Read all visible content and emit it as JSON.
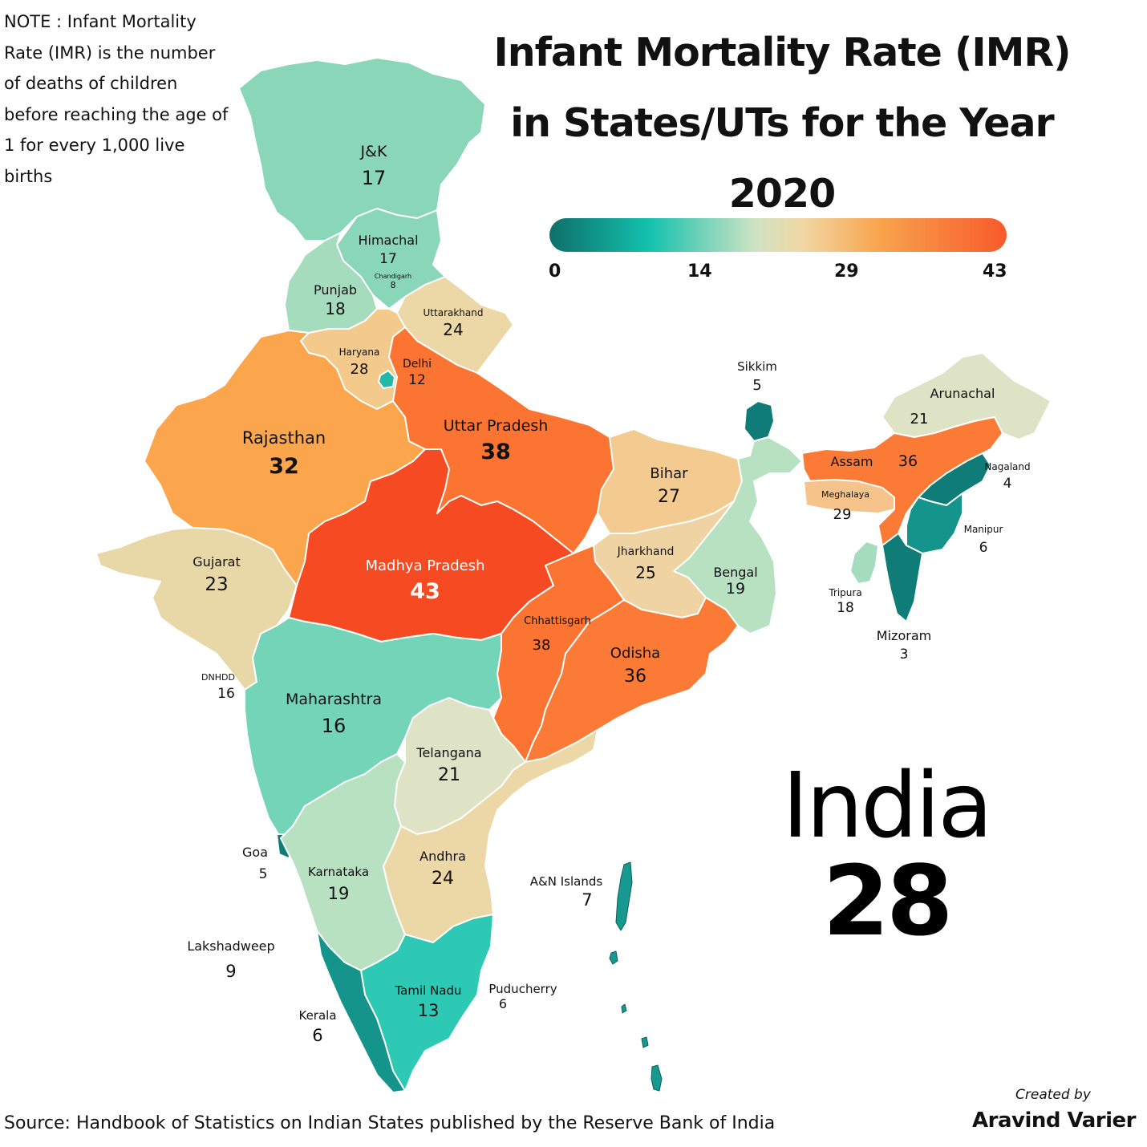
{
  "note": "NOTE : Infant Mortality Rate (IMR) is the number of deaths of children before reaching the age of 1 for every 1,000 live births",
  "title": {
    "line1": "Infant Mortality Rate (IMR)",
    "line2": "in States/UTs for the Year",
    "line3": "2020"
  },
  "legend": {
    "ticks": [
      "0",
      "14",
      "29",
      "43"
    ],
    "colors": [
      "#0e6f6a",
      "#14c2ae",
      "#cfe3c4",
      "#f0d8a6",
      "#f9a44e",
      "#f75a2a"
    ]
  },
  "national": {
    "name": "India",
    "value": "28"
  },
  "source": "Source: Handbook of Statistics on Indian States published by the Reserve Bank of India",
  "credit": {
    "by": "Created by",
    "name": "Aravind Varier"
  },
  "regions": {
    "jk": {
      "name": "J&K",
      "value": "17",
      "color": "#8ad6b8"
    },
    "himachal": {
      "name": "Himachal",
      "value": "17",
      "color": "#8ad6b8"
    },
    "chandigarh": {
      "name": "Chandigarh",
      "value": "8"
    },
    "punjab": {
      "name": "Punjab",
      "value": "18",
      "color": "#a6dcbe"
    },
    "uttarakhand": {
      "name": "Uttarakhand",
      "value": "24",
      "color": "#ecd7a6"
    },
    "haryana": {
      "name": "Haryana",
      "value": "28",
      "color": "#f3c98c"
    },
    "delhi": {
      "name": "Delhi",
      "value": "12",
      "color": "#23b8a8"
    },
    "rajasthan": {
      "name": "Rajasthan",
      "value": "32",
      "color": "#fba64d"
    },
    "up": {
      "name": "Uttar Pradesh",
      "value": "38",
      "color": "#fb7432"
    },
    "sikkim": {
      "name": "Sikkim",
      "value": "5",
      "color": "#0f7c77"
    },
    "arunachal": {
      "name": "Arunachal",
      "value": "21",
      "color": "#dde3c4"
    },
    "assam": {
      "name": "Assam",
      "value": "36",
      "color": "#fb7a36"
    },
    "nagaland": {
      "name": "Nagaland",
      "value": "4",
      "color": "#0f7c77"
    },
    "meghalaya": {
      "name": "Meghalaya",
      "value": "29",
      "color": "#f6c48a"
    },
    "manipur": {
      "name": "Manipur",
      "value": "6",
      "color": "#14948a"
    },
    "tripura": {
      "name": "Tripura",
      "value": "18",
      "color": "#a6dcbe"
    },
    "mizoram": {
      "name": "Mizoram",
      "value": "3",
      "color": "#0f7c77"
    },
    "bihar": {
      "name": "Bihar",
      "value": "27",
      "color": "#f3cb90"
    },
    "gujarat": {
      "name": "Gujarat",
      "value": "23",
      "color": "#e8d8a8"
    },
    "mp": {
      "name": "Madhya Pradesh",
      "value": "43",
      "color": "#f54a22"
    },
    "jharkhand": {
      "name": "Jharkhand",
      "value": "25",
      "color": "#efd3a2"
    },
    "bengal": {
      "name": "Bengal",
      "value": "19",
      "color": "#b8e1c2"
    },
    "chhattisgarh": {
      "name": "Chhattisgarh",
      "value": "38",
      "color": "#fb7432"
    },
    "odisha": {
      "name": "Odisha",
      "value": "36",
      "color": "#fb7a36"
    },
    "dnhdd": {
      "name": "DNHDD",
      "value": "16"
    },
    "maharashtra": {
      "name": "Maharashtra",
      "value": "16",
      "color": "#74d4b8"
    },
    "telangana": {
      "name": "Telangana",
      "value": "21",
      "color": "#dde3c4"
    },
    "goa": {
      "name": "Goa",
      "value": "5",
      "color": "#0f7c77"
    },
    "karnataka": {
      "name": "Karnataka",
      "value": "19",
      "color": "#b8e1c2"
    },
    "andhra": {
      "name": "Andhra",
      "value": "24",
      "color": "#ecd7a6"
    },
    "an_islands": {
      "name": "A&N Islands",
      "value": "7",
      "color": "#169a90"
    },
    "lakshadweep": {
      "name": "Lakshadweep",
      "value": "9"
    },
    "puducherry": {
      "name": "Puducherry",
      "value": "6"
    },
    "tamil_nadu": {
      "name": "Tamil Nadu",
      "value": "13",
      "color": "#2ec9b4"
    },
    "kerala": {
      "name": "Kerala",
      "value": "6",
      "color": "#14948a"
    }
  }
}
